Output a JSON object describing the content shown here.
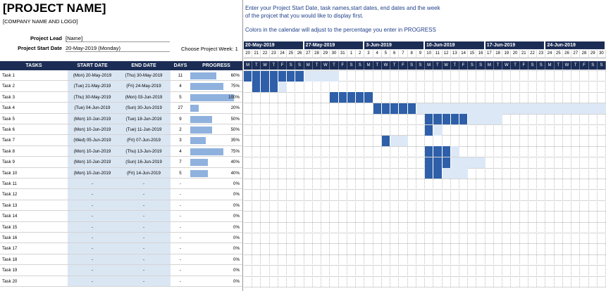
{
  "header": {
    "project_name": "[PROJECT NAME]",
    "company": "[COMPANY NAME AND LOGO]",
    "project_lead_label": "Project Lead",
    "project_lead_value": "[Name]",
    "start_date_label": "Project Start Date",
    "start_date_value": "20-May-2019 (Monday)",
    "choose_week_label": "Choose Project Week:",
    "choose_week_value": "1"
  },
  "instructions": {
    "line1": "Enter your Project Start Date, task names,start dates, end dates and the week",
    "line2": "of the projcet that you would like to display first.",
    "line3": "Colors in the calendar will adjust to the percentage you enter in PROGRESS"
  },
  "columns": [
    "TASKS",
    "START DATE",
    "END DATE",
    "DAYS",
    "PROGRESS"
  ],
  "tasks": [
    {
      "name": "Task 1",
      "start": "(Mon) 20-May-2019",
      "end": "(Thu) 30-May-2019",
      "days": "11",
      "progress": "60%",
      "pct": 0.6,
      "s": 0,
      "e": 10
    },
    {
      "name": "Task 2",
      "start": "(Tue) 21-May-2019",
      "end": "(Fri) 24-May-2019",
      "days": "4",
      "progress": "75%",
      "pct": 0.75,
      "s": 1,
      "e": 4
    },
    {
      "name": "Task 3",
      "start": "(Thu) 30-May-2019",
      "end": "(Mon) 03-Jun-2019",
      "days": "5",
      "progress": "100%",
      "pct": 1.0,
      "s": 10,
      "e": 14
    },
    {
      "name": "Task 4",
      "start": "(Tue) 04-Jun-2019",
      "end": "(Sun) 30-Jun-2019",
      "days": "27",
      "progress": "20%",
      "pct": 0.2,
      "s": 15,
      "e": 41
    },
    {
      "name": "Task 5",
      "start": "(Mon) 10-Jun-2019",
      "end": "(Tue) 18-Jun-2019",
      "days": "9",
      "progress": "50%",
      "pct": 0.5,
      "s": 21,
      "e": 29
    },
    {
      "name": "Task 6",
      "start": "(Mon) 10-Jun-2019",
      "end": "(Tue) 11-Jun-2019",
      "days": "2",
      "progress": "50%",
      "pct": 0.5,
      "s": 21,
      "e": 22
    },
    {
      "name": "Task 7",
      "start": "(Wed) 05-Jun-2019",
      "end": "(Fri) 07-Jun-2019",
      "days": "3",
      "progress": "35%",
      "pct": 0.35,
      "s": 16,
      "e": 18
    },
    {
      "name": "Task 8",
      "start": "(Mon) 10-Jun-2019",
      "end": "(Thu) 13-Jun-2019",
      "days": "4",
      "progress": "75%",
      "pct": 0.75,
      "s": 21,
      "e": 24
    },
    {
      "name": "Task 9",
      "start": "(Mon) 10-Jun-2019",
      "end": "(Sun) 16-Jun-2019",
      "days": "7",
      "progress": "40%",
      "pct": 0.4,
      "s": 21,
      "e": 27
    },
    {
      "name": "Task 10",
      "start": "(Mon) 10-Jun-2019",
      "end": "(Fri) 14-Jun-2019",
      "days": "5",
      "progress": "40%",
      "pct": 0.4,
      "s": 21,
      "e": 25
    },
    {
      "name": "Task 11",
      "start": "-",
      "end": "-",
      "days": "-",
      "progress": "0%",
      "pct": 0
    },
    {
      "name": "Task 12",
      "start": "-",
      "end": "-",
      "days": "-",
      "progress": "0%",
      "pct": 0
    },
    {
      "name": "Task 13",
      "start": "-",
      "end": "-",
      "days": "-",
      "progress": "0%",
      "pct": 0
    },
    {
      "name": "Task 14",
      "start": "-",
      "end": "-",
      "days": "-",
      "progress": "0%",
      "pct": 0
    },
    {
      "name": "Task 15",
      "start": "-",
      "end": "-",
      "days": "-",
      "progress": "0%",
      "pct": 0
    },
    {
      "name": "Task 16",
      "start": "-",
      "end": "-",
      "days": "-",
      "progress": "0%",
      "pct": 0
    },
    {
      "name": "Task 17",
      "start": "-",
      "end": "-",
      "days": "-",
      "progress": "0%",
      "pct": 0
    },
    {
      "name": "Task 18",
      "start": "-",
      "end": "-",
      "days": "-",
      "progress": "0%",
      "pct": 0
    },
    {
      "name": "Task 19",
      "start": "-",
      "end": "-",
      "days": "-",
      "progress": "0%",
      "pct": 0
    },
    {
      "name": "Task 20",
      "start": "-",
      "end": "-",
      "days": "-",
      "progress": "0%",
      "pct": 0
    }
  ],
  "calendar": {
    "weeks": [
      "20-May-2019",
      "27-May-2019",
      "3-Jun-2019",
      "10-Jun-2019",
      "17-Jun-2019",
      "24-Jun-2019"
    ],
    "day_numbers": [
      "20",
      "21",
      "22",
      "23",
      "24",
      "25",
      "26",
      "27",
      "28",
      "29",
      "30",
      "31",
      "1",
      "2",
      "3",
      "4",
      "5",
      "6",
      "7",
      "8",
      "9",
      "10",
      "11",
      "12",
      "13",
      "14",
      "15",
      "16",
      "17",
      "18",
      "19",
      "20",
      "21",
      "22",
      "23",
      "24",
      "25",
      "26",
      "27",
      "28",
      "29",
      "30"
    ],
    "day_letters": [
      "M",
      "T",
      "W",
      "T",
      "F",
      "S",
      "S"
    ]
  },
  "colors": {
    "header_navy": "#1c2d55",
    "done_blue": "#2e5fa8",
    "remaining_blue": "#dce8f6",
    "progress_fill": "#8fb1de",
    "info_text": "#1f3f8a"
  }
}
